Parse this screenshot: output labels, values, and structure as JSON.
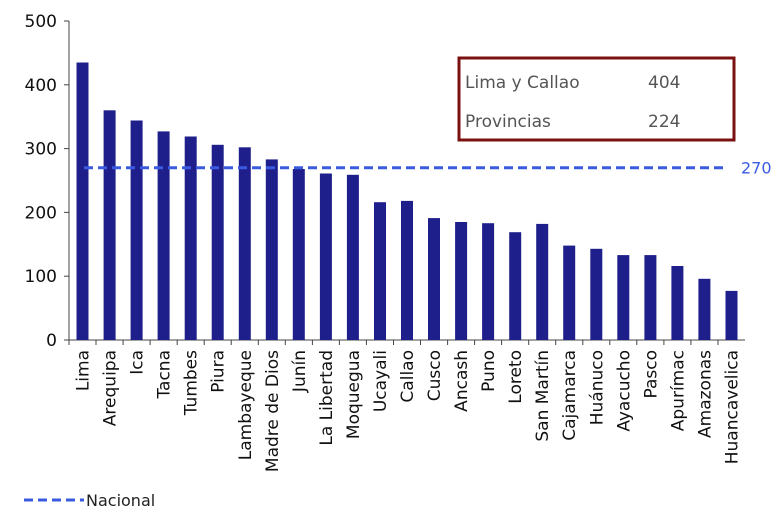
{
  "chart_data": {
    "type": "bar",
    "categories": [
      "Lima",
      "Arequipa",
      "Ica",
      "Tacna",
      "Tumbes",
      "Piura",
      "Lambayeque",
      "Madre de Dios",
      "Junín",
      "La Libertad",
      "Moquegua",
      "Ucayali",
      "Callao",
      "Cusco",
      "Ancash",
      "Puno",
      "Loreto",
      "San Martín",
      "Cajamarca",
      "Huánuco",
      "Ayacucho",
      "Pasco",
      "Apurímac",
      "Amazonas",
      "Huancavelica"
    ],
    "series": [
      {
        "values": [
          435,
          360,
          344,
          327,
          319,
          306,
          302,
          283,
          268,
          261,
          259,
          216,
          218,
          191,
          185,
          183,
          169,
          182,
          148,
          143,
          133,
          133,
          116,
          96,
          77
        ]
      }
    ],
    "ylim": [
      0,
      500
    ],
    "yticks": [
      "0",
      "100",
      "200",
      "300",
      "400",
      "500"
    ],
    "bar_color": "#1f1f8c",
    "reference_line": {
      "value": 270,
      "label": "270",
      "color": "#3a5be0"
    },
    "legend": {
      "position": "bottom-left",
      "label": "Nacional"
    },
    "summary_box": {
      "border_color": "#7a1010",
      "rows": [
        {
          "label": "Lima y Callao",
          "value": "404"
        },
        {
          "label": "Provincias",
          "value": "224"
        }
      ]
    },
    "grid": false,
    "title": "",
    "xlabel": "",
    "ylabel": ""
  }
}
